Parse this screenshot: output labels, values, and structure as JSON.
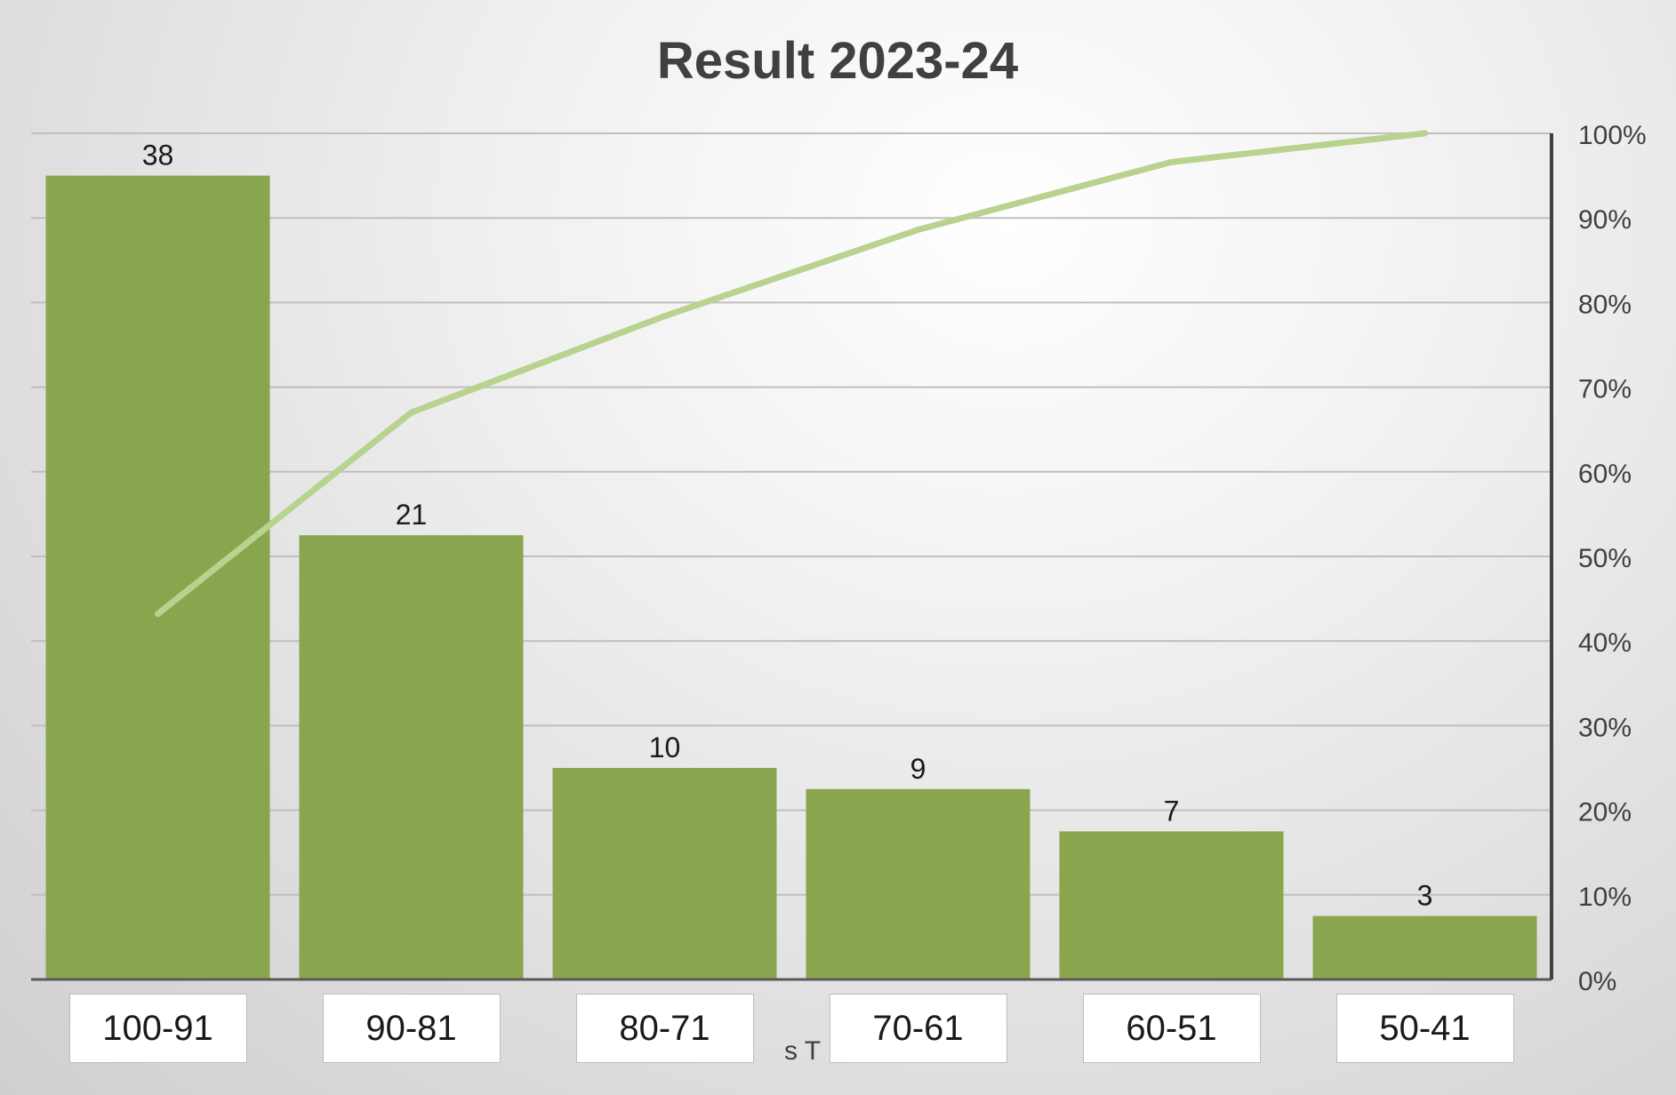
{
  "chart_data": {
    "type": "bar",
    "title": "Result 2023-24",
    "categories": [
      "100-91",
      "90-81",
      "80-71",
      "70-61",
      "60-51",
      "50-41"
    ],
    "values": [
      38,
      21,
      10,
      9,
      7,
      3
    ],
    "cumulative_percent": [
      43.2,
      67.0,
      78.4,
      88.6,
      96.6,
      100
    ],
    "y2_ticks": [
      "0%",
      "10%",
      "20%",
      "30%",
      "40%",
      "50%",
      "60%",
      "70%",
      "80%",
      "90%",
      "100%"
    ],
    "y2lim": [
      0,
      100
    ],
    "ylim": [
      0,
      40
    ],
    "grid": true,
    "partial_hidden_axis_text": "s T",
    "colors": {
      "bar": "#89a64f",
      "line": "#b7d38e",
      "grid": "#bfbfbf",
      "axis": "#595959",
      "title": "#404040"
    }
  }
}
